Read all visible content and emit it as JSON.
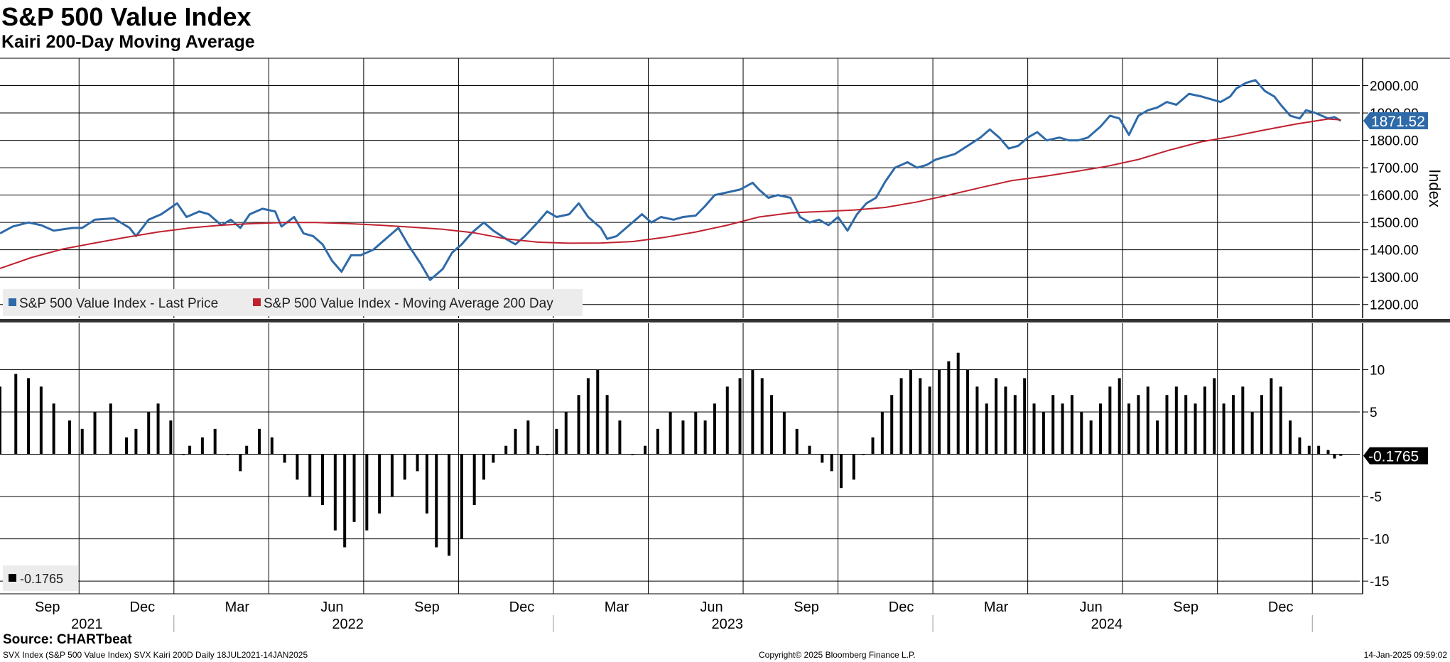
{
  "header": {
    "title": "S&P 500 Value Index",
    "subtitle": "Kairi 200-Day Moving Average"
  },
  "footer": {
    "source": "Source: CHARTbeat",
    "left": "SVX Index (S&P 500 Value Index) SVX Kairi 200D  Daily 18JUL2021-14JAN2025",
    "center": "Copyright© 2025 Bloomberg Finance L.P.",
    "right": "14-Jan-2025 09:59:02"
  },
  "colors": {
    "price": "#2e6aa8",
    "ma": "#c0212f",
    "bars": "#000000",
    "grid": "#000000",
    "price_badge": "#2e6aa8",
    "kairi_badge": "#000000",
    "legend_bg": "#ececec"
  },
  "chart_data": {
    "type": "line",
    "x_range": [
      "2021-07-18",
      "2025-01-14"
    ],
    "xlim": [
      0,
      43
    ],
    "x_months": [
      "2021-Sep",
      "2021-Dec",
      "2022-Mar",
      "2022-Jun",
      "2022-Sep",
      "2022-Dec",
      "2023-Mar",
      "2023-Jun",
      "2023-Sep",
      "2023-Dec",
      "2024-Mar",
      "2024-Jun",
      "2024-Sep",
      "2024-Dec"
    ],
    "x_month_ticks": [
      "Sep",
      "Dec",
      "Mar",
      "Jun",
      "Sep",
      "Dec",
      "Mar",
      "Jun",
      "Sep",
      "Dec",
      "Mar",
      "Jun",
      "Sep",
      "Dec"
    ],
    "x_month_pos": [
      1.5,
      4.5,
      7.5,
      10.5,
      13.5,
      16.5,
      19.5,
      22.5,
      25.5,
      28.5,
      31.5,
      34.5,
      37.5,
      40.5
    ],
    "x_month_grid": [
      2.5,
      5.5,
      8.5,
      11.5,
      14.5,
      17.5,
      20.5,
      23.5,
      26.5,
      29.5,
      32.5,
      35.5,
      38.5,
      41.5
    ],
    "x_years": [
      "2021",
      "2022",
      "2023",
      "2024"
    ],
    "x_year_pos": [
      2.75,
      11.0,
      23.0,
      35.0
    ],
    "x_year_separators": [
      5.5,
      17.5,
      29.5,
      41.5
    ],
    "price_panel": {
      "ylabel": "Index",
      "ylim": [
        1150,
        2100
      ],
      "yticks": [
        1200,
        1300,
        1400,
        1500,
        1600,
        1700,
        1800,
        1900,
        2000
      ],
      "ytick_labels": [
        "1200.00",
        "1300.00",
        "1400.00",
        "1500.00",
        "1600.00",
        "1700.00",
        "1800.00",
        "1900.00",
        "2000.00"
      ],
      "last_value_label": "1871.52",
      "legend": [
        "S&P 500 Value Index - Last Price",
        "S&P 500 Value Index - Moving Average 200 Day"
      ],
      "series": [
        {
          "name": "S&P 500 Value Index - Last Price",
          "x": [
            0,
            0.4,
            0.9,
            1.3,
            1.7,
            2.3,
            2.6,
            3.0,
            3.6,
            4.1,
            4.3,
            4.7,
            5.1,
            5.6,
            5.9,
            6.3,
            6.6,
            7.0,
            7.3,
            7.6,
            7.9,
            8.3,
            8.7,
            8.9,
            9.3,
            9.6,
            9.9,
            10.2,
            10.5,
            10.8,
            11.1,
            11.4,
            11.8,
            12.3,
            12.6,
            12.9,
            13.3,
            13.6,
            14.0,
            14.3,
            14.6,
            14.9,
            15.3,
            15.6,
            16.0,
            16.3,
            16.6,
            17.0,
            17.3,
            17.6,
            18.0,
            18.3,
            18.6,
            19.0,
            19.2,
            19.5,
            19.9,
            20.3,
            20.6,
            20.9,
            21.3,
            21.6,
            22.0,
            22.3,
            22.6,
            23.0,
            23.4,
            23.8,
            24.0,
            24.3,
            24.6,
            25.0,
            25.3,
            25.6,
            25.9,
            26.2,
            26.5,
            26.8,
            27.1,
            27.4,
            27.7,
            28.0,
            28.3,
            28.7,
            29.0,
            29.3,
            29.6,
            29.9,
            30.2,
            30.6,
            31.0,
            31.3,
            31.6,
            31.9,
            32.2,
            32.5,
            32.8,
            33.1,
            33.5,
            33.8,
            34.1,
            34.4,
            34.8,
            35.1,
            35.4,
            35.7,
            36.0,
            36.3,
            36.6,
            36.9,
            37.2,
            37.6,
            38.0,
            38.3,
            38.6,
            38.9,
            39.1,
            39.4,
            39.7,
            40.0,
            40.3,
            40.5,
            40.8,
            41.1,
            41.3,
            41.6,
            42.0,
            42.2,
            42.4
          ],
          "values": [
            1460,
            1485,
            1500,
            1490,
            1470,
            1480,
            1480,
            1510,
            1515,
            1480,
            1450,
            1510,
            1530,
            1570,
            1520,
            1540,
            1530,
            1490,
            1510,
            1480,
            1530,
            1550,
            1540,
            1485,
            1520,
            1460,
            1450,
            1420,
            1360,
            1320,
            1380,
            1380,
            1400,
            1450,
            1480,
            1420,
            1350,
            1290,
            1330,
            1390,
            1420,
            1460,
            1500,
            1470,
            1440,
            1420,
            1450,
            1500,
            1540,
            1520,
            1530,
            1570,
            1520,
            1480,
            1440,
            1450,
            1490,
            1530,
            1500,
            1520,
            1510,
            1520,
            1525,
            1560,
            1600,
            1610,
            1620,
            1645,
            1620,
            1590,
            1600,
            1590,
            1520,
            1500,
            1510,
            1490,
            1520,
            1470,
            1530,
            1570,
            1590,
            1650,
            1700,
            1720,
            1700,
            1710,
            1730,
            1740,
            1750,
            1780,
            1810,
            1840,
            1810,
            1770,
            1780,
            1810,
            1830,
            1800,
            1810,
            1800,
            1800,
            1810,
            1850,
            1890,
            1880,
            1820,
            1890,
            1910,
            1920,
            1940,
            1930,
            1970,
            1960,
            1950,
            1940,
            1960,
            1990,
            2010,
            2020,
            1980,
            1960,
            1930,
            1890,
            1880,
            1910,
            1900,
            1880,
            1885,
            1871.52
          ]
        },
        {
          "name": "S&P 500 Value Index - Moving Average 200 Day",
          "x": [
            0,
            1.0,
            2.0,
            3.0,
            4.0,
            5.0,
            6.0,
            7.0,
            8.0,
            9.0,
            10.0,
            11.0,
            12.0,
            13.0,
            14.0,
            15.0,
            16.0,
            17.0,
            18.0,
            19.0,
            20.0,
            21.0,
            22.0,
            23.0,
            24.0,
            25.0,
            26.0,
            27.0,
            28.0,
            29.0,
            30.0,
            31.0,
            32.0,
            33.0,
            34.0,
            35.0,
            36.0,
            37.0,
            38.0,
            39.0,
            40.0,
            41.0,
            42.0,
            42.4
          ],
          "values": [
            1332,
            1372,
            1403,
            1425,
            1446,
            1465,
            1480,
            1490,
            1496,
            1500,
            1500,
            1496,
            1490,
            1483,
            1475,
            1462,
            1440,
            1428,
            1424,
            1425,
            1430,
            1445,
            1465,
            1490,
            1520,
            1535,
            1540,
            1545,
            1555,
            1575,
            1600,
            1627,
            1653,
            1668,
            1686,
            1705,
            1730,
            1765,
            1795,
            1815,
            1838,
            1860,
            1878,
            1875
          ]
        }
      ]
    },
    "kairi_panel": {
      "type": "bar",
      "ylim": [
        -16.5,
        15.5
      ],
      "yticks": [
        -15,
        -10,
        -5,
        5,
        10
      ],
      "ytick_labels": [
        "-15",
        "-10",
        "-5",
        "5",
        "10"
      ],
      "last_value_label": "-0.1765",
      "legend": [
        "-0.1765"
      ],
      "x": [
        0,
        0.5,
        0.9,
        1.3,
        1.7,
        2.2,
        2.6,
        3.0,
        3.5,
        4.0,
        4.3,
        4.7,
        5.0,
        5.4,
        5.8,
        6.0,
        6.4,
        6.8,
        7.2,
        7.6,
        7.8,
        8.2,
        8.6,
        9.0,
        9.4,
        9.8,
        10.2,
        10.6,
        10.9,
        11.2,
        11.6,
        12.0,
        12.4,
        12.8,
        13.2,
        13.5,
        13.8,
        14.2,
        14.6,
        15.0,
        15.3,
        15.6,
        16.0,
        16.3,
        16.7,
        17.0,
        17.3,
        17.6,
        17.9,
        18.3,
        18.6,
        18.9,
        19.2,
        19.6,
        20.0,
        20.4,
        20.8,
        21.2,
        21.6,
        22.0,
        22.3,
        22.6,
        23.0,
        23.4,
        23.8,
        24.1,
        24.4,
        24.8,
        25.2,
        25.6,
        26.0,
        26.3,
        26.6,
        27.0,
        27.3,
        27.6,
        27.9,
        28.2,
        28.5,
        28.8,
        29.1,
        29.4,
        29.7,
        30.0,
        30.3,
        30.6,
        30.9,
        31.2,
        31.5,
        31.8,
        32.1,
        32.4,
        32.7,
        33.0,
        33.3,
        33.6,
        33.9,
        34.2,
        34.5,
        34.8,
        35.1,
        35.4,
        35.7,
        36.0,
        36.3,
        36.6,
        36.9,
        37.2,
        37.5,
        37.8,
        38.1,
        38.4,
        38.7,
        39.0,
        39.3,
        39.6,
        39.9,
        40.2,
        40.5,
        40.8,
        41.1,
        41.4,
        41.7,
        42.0,
        42.2,
        42.4
      ],
      "values": [
        8,
        9.5,
        9,
        8,
        6,
        4,
        3,
        5,
        6,
        2,
        3,
        5,
        6,
        4,
        0,
        1,
        2,
        3,
        0,
        -2,
        1,
        3,
        2,
        -1,
        -3,
        -5,
        -6,
        -9,
        -11,
        -8,
        -9,
        -7,
        -5,
        -3,
        -2,
        -7,
        -11,
        -12,
        -10,
        -6,
        -3,
        -1,
        1,
        3,
        4,
        1,
        0,
        3,
        5,
        7,
        9,
        10,
        7,
        4,
        0,
        1,
        3,
        5,
        4,
        5,
        4,
        6,
        8,
        9,
        10,
        9,
        7,
        5,
        3,
        1,
        -1,
        -2,
        -4,
        -3,
        0,
        2,
        5,
        7,
        9,
        10,
        9,
        8,
        10,
        11,
        12,
        10,
        8,
        6,
        9,
        8,
        7,
        9,
        6,
        5,
        7,
        6,
        7,
        5,
        4,
        6,
        8,
        9,
        6,
        7,
        8,
        4,
        7,
        8,
        7,
        6,
        8,
        9,
        6,
        7,
        8,
        5,
        7,
        9,
        8,
        4,
        2,
        1,
        1,
        0.5,
        -0.5,
        -0.1765
      ]
    }
  }
}
